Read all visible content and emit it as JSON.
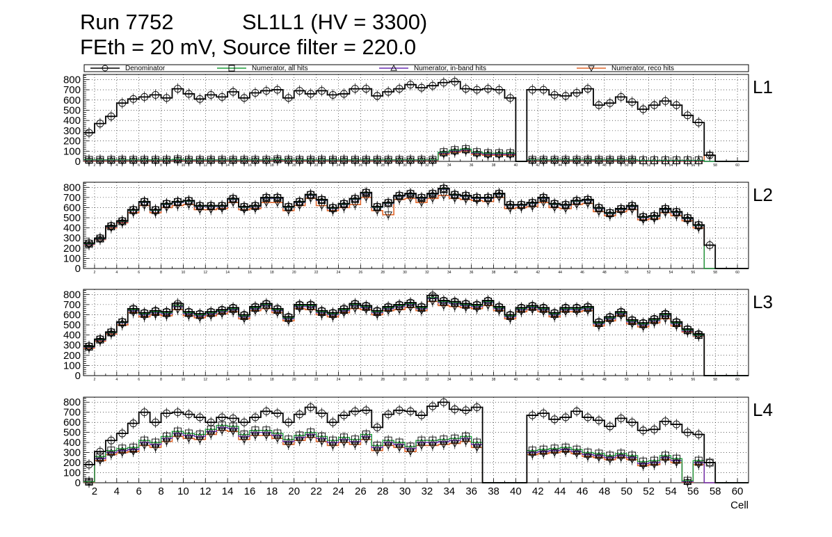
{
  "header": {
    "run": "Run 7752",
    "chamber": "SL1L1 (HV = 3300)",
    "settings": "FEth = 20 mV, Source filter = 220.0"
  },
  "colors": {
    "denominator": "#000000",
    "numerator_all": "#1f9e3a",
    "numerator_inband": "#6a2fb4",
    "numerator_reco": "#e0662a"
  },
  "chart_data": {
    "type": "line",
    "style": "step histogram with markers",
    "xlabel": "Cell",
    "x_range": [
      1,
      61
    ],
    "y_range": [
      0,
      850
    ],
    "y_ticks": [
      0,
      100,
      200,
      300,
      400,
      500,
      600,
      700,
      800
    ],
    "x_ticks": [
      2,
      4,
      6,
      8,
      10,
      12,
      14,
      16,
      18,
      20,
      22,
      24,
      26,
      28,
      30,
      32,
      34,
      36,
      38,
      40,
      42,
      44,
      46,
      48,
      50,
      52,
      54,
      56,
      58,
      60
    ],
    "grid": true,
    "legend": {
      "placement": "top",
      "entries": [
        "Denominator",
        "Numerator, all hits",
        "Numerator, in-band hits",
        "Numerator, reco hits"
      ]
    },
    "panels": [
      {
        "label": "L1",
        "denominator": [
          280,
          370,
          440,
          570,
          610,
          630,
          650,
          620,
          710,
          660,
          610,
          650,
          630,
          680,
          620,
          670,
          690,
          700,
          620,
          690,
          660,
          690,
          650,
          660,
          710,
          710,
          640,
          680,
          710,
          750,
          720,
          740,
          770,
          780,
          710,
          700,
          710,
          700,
          620,
          0,
          700,
          700,
          650,
          640,
          670,
          710,
          550,
          570,
          630,
          580,
          510,
          550,
          590,
          550,
          450,
          380,
          60,
          0,
          0,
          0
        ],
        "numerator_all": [
          15,
          15,
          15,
          15,
          15,
          15,
          15,
          15,
          20,
          15,
          15,
          15,
          15,
          15,
          15,
          15,
          15,
          20,
          15,
          15,
          15,
          15,
          15,
          15,
          15,
          15,
          15,
          15,
          15,
          15,
          15,
          15,
          90,
          110,
          120,
          90,
          80,
          80,
          80,
          0,
          15,
          15,
          15,
          15,
          15,
          15,
          15,
          15,
          15,
          15,
          10,
          10,
          10,
          10,
          10,
          10,
          0,
          0,
          0,
          0
        ],
        "numerator_inband": [
          10,
          10,
          10,
          10,
          10,
          10,
          10,
          10,
          15,
          10,
          10,
          10,
          10,
          10,
          10,
          10,
          10,
          15,
          10,
          10,
          10,
          10,
          10,
          10,
          10,
          10,
          10,
          10,
          10,
          10,
          10,
          10,
          80,
          100,
          110,
          80,
          70,
          70,
          70,
          0,
          10,
          10,
          10,
          10,
          10,
          10,
          10,
          10,
          10,
          10,
          5,
          5,
          5,
          5,
          5,
          5,
          0,
          0,
          0,
          0
        ],
        "numerator_reco": [
          5,
          5,
          5,
          5,
          5,
          5,
          5,
          5,
          10,
          5,
          5,
          5,
          5,
          5,
          5,
          5,
          5,
          10,
          5,
          5,
          5,
          5,
          5,
          5,
          5,
          5,
          5,
          5,
          5,
          5,
          5,
          5,
          70,
          90,
          100,
          70,
          60,
          60,
          60,
          0,
          5,
          5,
          5,
          5,
          5,
          5,
          5,
          5,
          5,
          5,
          0,
          0,
          0,
          0,
          0,
          0,
          60,
          0,
          0,
          0
        ]
      },
      {
        "label": "L2",
        "denominator": [
          250,
          300,
          420,
          470,
          580,
          660,
          580,
          640,
          660,
          670,
          620,
          620,
          620,
          690,
          610,
          620,
          700,
          700,
          610,
          660,
          730,
          680,
          600,
          640,
          690,
          750,
          610,
          650,
          720,
          740,
          700,
          740,
          790,
          730,
          720,
          700,
          700,
          740,
          630,
          630,
          650,
          700,
          640,
          630,
          670,
          680,
          600,
          550,
          590,
          620,
          510,
          520,
          590,
          560,
          500,
          430,
          230,
          0,
          0,
          0
        ],
        "numerator_all": [
          245,
          295,
          415,
          465,
          575,
          655,
          575,
          635,
          655,
          665,
          615,
          615,
          615,
          685,
          605,
          615,
          695,
          695,
          605,
          655,
          725,
          675,
          595,
          635,
          685,
          745,
          605,
          645,
          715,
          735,
          695,
          735,
          785,
          725,
          715,
          695,
          695,
          735,
          625,
          625,
          645,
          695,
          635,
          625,
          665,
          675,
          595,
          545,
          585,
          615,
          505,
          515,
          585,
          555,
          495,
          425,
          0,
          0,
          0,
          0
        ],
        "numerator_inband": [
          240,
          290,
          410,
          460,
          570,
          650,
          570,
          630,
          650,
          660,
          610,
          610,
          610,
          680,
          600,
          610,
          690,
          690,
          600,
          650,
          720,
          670,
          590,
          630,
          680,
          740,
          600,
          640,
          710,
          730,
          690,
          730,
          780,
          720,
          710,
          690,
          690,
          730,
          620,
          620,
          640,
          690,
          630,
          620,
          660,
          670,
          590,
          540,
          580,
          610,
          500,
          510,
          580,
          550,
          490,
          420,
          0,
          0,
          0,
          0
        ],
        "numerator_reco": [
          235,
          285,
          400,
          450,
          550,
          620,
          550,
          600,
          620,
          630,
          580,
          580,
          590,
          650,
          580,
          590,
          650,
          650,
          570,
          620,
          690,
          620,
          570,
          600,
          630,
          700,
          570,
          530,
          680,
          690,
          650,
          690,
          720,
          690,
          680,
          670,
          660,
          700,
          590,
          600,
          610,
          650,
          600,
          590,
          630,
          640,
          560,
          520,
          560,
          580,
          480,
          490,
          550,
          520,
          470,
          400,
          0,
          0,
          0,
          0
        ]
      },
      {
        "label": "L3",
        "denominator": [
          290,
          360,
          430,
          530,
          660,
          620,
          640,
          630,
          710,
          630,
          610,
          630,
          650,
          670,
          600,
          680,
          710,
          660,
          580,
          700,
          700,
          640,
          620,
          660,
          710,
          690,
          640,
          680,
          700,
          720,
          680,
          790,
          740,
          730,
          710,
          700,
          740,
          680,
          600,
          670,
          690,
          670,
          620,
          670,
          670,
          680,
          530,
          580,
          630,
          550,
          520,
          560,
          610,
          530,
          460,
          410,
          0,
          0,
          0,
          0
        ],
        "numerator_all": [
          285,
          355,
          425,
          525,
          650,
          610,
          630,
          620,
          690,
          620,
          600,
          620,
          640,
          660,
          590,
          670,
          700,
          650,
          570,
          690,
          690,
          630,
          610,
          650,
          700,
          680,
          630,
          670,
          690,
          710,
          670,
          770,
          730,
          720,
          700,
          690,
          730,
          670,
          590,
          660,
          680,
          660,
          610,
          660,
          660,
          670,
          520,
          570,
          620,
          540,
          510,
          550,
          600,
          520,
          450,
          400,
          0,
          0,
          0,
          0
        ],
        "numerator_inband": [
          280,
          350,
          420,
          520,
          640,
          600,
          620,
          610,
          680,
          610,
          590,
          610,
          630,
          650,
          580,
          660,
          690,
          640,
          560,
          680,
          680,
          620,
          600,
          640,
          690,
          670,
          620,
          660,
          680,
          700,
          660,
          760,
          720,
          710,
          690,
          680,
          720,
          660,
          580,
          650,
          670,
          650,
          600,
          650,
          650,
          660,
          510,
          560,
          610,
          530,
          500,
          540,
          590,
          510,
          440,
          395,
          0,
          0,
          0,
          0
        ],
        "numerator_reco": [
          270,
          340,
          410,
          500,
          620,
          580,
          600,
          590,
          650,
          590,
          570,
          590,
          610,
          630,
          560,
          640,
          660,
          620,
          540,
          660,
          650,
          600,
          580,
          620,
          660,
          650,
          600,
          640,
          650,
          670,
          640,
          730,
          690,
          680,
          670,
          660,
          690,
          640,
          560,
          630,
          650,
          630,
          580,
          630,
          630,
          640,
          490,
          540,
          590,
          510,
          480,
          520,
          560,
          490,
          430,
          390,
          0,
          0,
          0,
          0
        ]
      },
      {
        "label": "L4",
        "denominator": [
          180,
          310,
          420,
          490,
          590,
          700,
          600,
          690,
          700,
          680,
          650,
          600,
          650,
          640,
          600,
          650,
          710,
          690,
          600,
          680,
          750,
          690,
          600,
          670,
          710,
          720,
          550,
          680,
          720,
          710,
          670,
          760,
          800,
          730,
          720,
          750,
          0,
          0,
          0,
          0,
          670,
          690,
          630,
          650,
          710,
          650,
          620,
          560,
          640,
          600,
          520,
          530,
          610,
          580,
          500,
          480,
          200,
          0,
          0,
          0
        ],
        "numerator_all": [
          10,
          260,
          320,
          340,
          350,
          420,
          400,
          460,
          510,
          490,
          480,
          530,
          570,
          560,
          480,
          520,
          520,
          490,
          430,
          470,
          500,
          460,
          420,
          450,
          430,
          480,
          370,
          420,
          400,
          360,
          420,
          420,
          430,
          440,
          460,
          400,
          0,
          0,
          0,
          0,
          320,
          330,
          340,
          350,
          330,
          300,
          290,
          270,
          290,
          270,
          210,
          220,
          270,
          240,
          20,
          220,
          200,
          0,
          0,
          0
        ],
        "numerator_inband": [
          8,
          240,
          300,
          320,
          330,
          400,
          380,
          440,
          490,
          470,
          460,
          510,
          550,
          540,
          460,
          500,
          500,
          470,
          410,
          450,
          480,
          440,
          400,
          430,
          410,
          460,
          350,
          400,
          380,
          340,
          400,
          400,
          410,
          420,
          440,
          380,
          0,
          0,
          0,
          0,
          300,
          310,
          320,
          330,
          310,
          280,
          270,
          250,
          270,
          250,
          190,
          200,
          250,
          220,
          10,
          200,
          0,
          0,
          0,
          0
        ],
        "numerator_reco": [
          5,
          220,
          280,
          300,
          310,
          370,
          350,
          410,
          460,
          440,
          430,
          480,
          520,
          510,
          430,
          470,
          470,
          440,
          380,
          420,
          450,
          410,
          370,
          400,
          380,
          430,
          320,
          370,
          350,
          310,
          370,
          370,
          380,
          390,
          410,
          350,
          0,
          0,
          0,
          0,
          280,
          290,
          300,
          310,
          290,
          260,
          250,
          230,
          250,
          230,
          170,
          180,
          230,
          200,
          5,
          180,
          0,
          0,
          0,
          0
        ]
      }
    ]
  }
}
